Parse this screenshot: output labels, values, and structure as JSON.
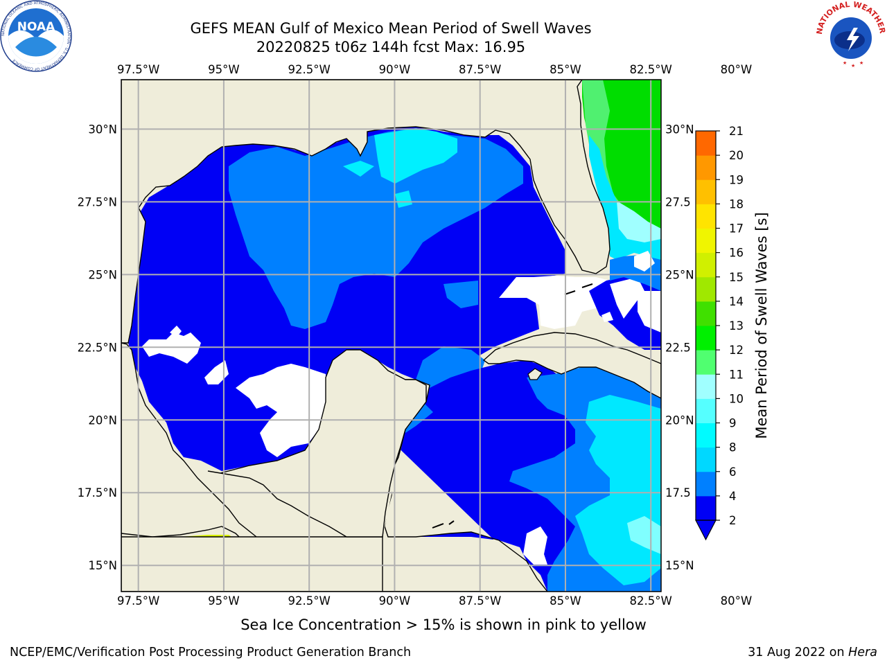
{
  "title": {
    "line1": "GEFS MEAN Gulf of Mexico Mean Period of Swell Waves",
    "line2": "20220825 t06z 144h fcst   Max: 16.95"
  },
  "map": {
    "lon_range": [
      -98.0,
      -82.2
    ],
    "lat_range": [
      14.1,
      31.7
    ],
    "lon_ticks": [
      "97.5°W",
      "95°W",
      "92.5°W",
      "90°W",
      "87.5°W",
      "85°W",
      "82.5°W",
      "80°W"
    ],
    "lon_tick_values": [
      -97.5,
      -95,
      -92.5,
      -90,
      -87.5,
      -85,
      -82.5,
      -80
    ],
    "lat_ticks_left": [
      "30°N",
      "27.5°N",
      "25°N",
      "22.5°N",
      "20°N",
      "17.5°N",
      "15°N"
    ],
    "lat_ticks_right": [
      "30°N",
      "27.5",
      "25°N",
      "22.5",
      "20°N",
      "17.5",
      "15°N"
    ],
    "lat_tick_values": [
      30,
      27.5,
      25,
      22.5,
      20,
      17.5,
      15
    ],
    "colors": {
      "land": "#efedda",
      "grid": "#b0b0b0",
      "coast": "#000000"
    }
  },
  "colorbar": {
    "label": "Mean Period of Swell Waves [s]",
    "ticks": [
      "2",
      "4",
      "6",
      "8",
      "9",
      "10",
      "11",
      "12",
      "13",
      "14",
      "15",
      "16",
      "17",
      "18",
      "19",
      "20",
      "21"
    ],
    "colors": [
      "#0000f5",
      "#0080ff",
      "#00d8ff",
      "#00fbff",
      "#55ffff",
      "#a0ffff",
      "#50ff70",
      "#00f000",
      "#40e000",
      "#a0e800",
      "#d0f000",
      "#f0f500",
      "#ffe400",
      "#ffc000",
      "#ff9800",
      "#ff6800",
      "#ff3800",
      "#ff0000"
    ]
  },
  "caption": "Sea Ice Concentration > 15% is shown in pink to yellow",
  "footer": {
    "left": "NCEP/EMC/Verification Post Processing Product Generation Branch",
    "right_prefix": "31 Aug 2022 on ",
    "right_host": "Hera"
  },
  "logos": {
    "noaa": {
      "text": "NOAA",
      "ring": "NATIONAL OCEANIC AND ATMOSPHERIC ADMINISTRATION · U.S. DEPARTMENT OF COMMERCE"
    },
    "nws": {
      "ring": "NATIONAL WEATHER SERVICE"
    }
  }
}
